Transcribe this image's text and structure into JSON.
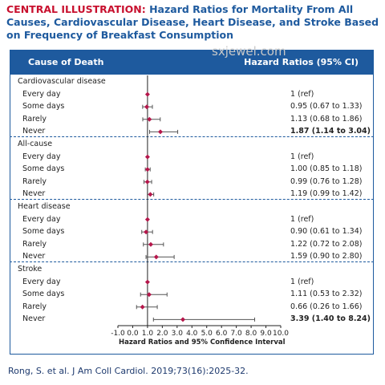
{
  "title": {
    "lead": "CENTRAL ILLUSTRATION:",
    "rest": " Hazard Ratios for Mortality From All Causes, Cardiovascular Disease, Heart Disease, and Stroke Based on Frequency of Breakfast Consumption"
  },
  "watermark": "sxjewel.com",
  "header": {
    "left": "Cause of Death",
    "right": "Hazard Ratios (95% CI)"
  },
  "citation": "Rong, S. et al. J Am Coll Cardiol. 2019;73(16):2025-32.",
  "colors": {
    "brand": "#1e5a9e",
    "accent": "#c8102e",
    "marker": "#b5174b",
    "whisker": "#555555"
  },
  "chart_data": {
    "type": "forest",
    "xlabel": "Hazard Ratios and 95% Confidence Interval",
    "xlim": [
      -1.0,
      10.0
    ],
    "xticks": [
      "-1.0",
      "0.0",
      "1.0",
      "2.0",
      "3.0",
      "4.0",
      "5.0",
      "6.0",
      "7.0",
      "8.0",
      "9.0",
      "10.0"
    ],
    "reference_line": 1.0,
    "groups": [
      {
        "name": "Cardiovascular disease",
        "rows": [
          {
            "label": "Every day",
            "hr": 1.0,
            "lo": null,
            "hi": null,
            "text": "1 (ref)",
            "bold": false
          },
          {
            "label": "Some days",
            "hr": 0.95,
            "lo": 0.67,
            "hi": 1.33,
            "text": "0.95 (0.67 to 1.33)",
            "bold": false
          },
          {
            "label": "Rarely",
            "hr": 1.13,
            "lo": 0.68,
            "hi": 1.86,
            "text": "1.13 (0.68 to 1.86)",
            "bold": false
          },
          {
            "label": "Never",
            "hr": 1.87,
            "lo": 1.14,
            "hi": 3.04,
            "text": "1.87 (1.14 to 3.04)",
            "bold": true
          }
        ]
      },
      {
        "name": "All-cause",
        "rows": [
          {
            "label": "Every day",
            "hr": 1.0,
            "lo": null,
            "hi": null,
            "text": "1 (ref)",
            "bold": false
          },
          {
            "label": "Some days",
            "hr": 1.0,
            "lo": 0.85,
            "hi": 1.18,
            "text": "1.00 (0.85 to 1.18)",
            "bold": false
          },
          {
            "label": "Rarely",
            "hr": 0.99,
            "lo": 0.76,
            "hi": 1.28,
            "text": "0.99 (0.76 to 1.28)",
            "bold": false
          },
          {
            "label": "Never",
            "hr": 1.19,
            "lo": 0.99,
            "hi": 1.42,
            "text": "1.19 (0.99 to 1.42)",
            "bold": false
          }
        ]
      },
      {
        "name": "Heart disease",
        "rows": [
          {
            "label": "Every day",
            "hr": 1.0,
            "lo": null,
            "hi": null,
            "text": "1 (ref)",
            "bold": false
          },
          {
            "label": "Some days",
            "hr": 0.9,
            "lo": 0.61,
            "hi": 1.34,
            "text": "0.90 (0.61 to 1.34)",
            "bold": false
          },
          {
            "label": "Rarely",
            "hr": 1.22,
            "lo": 0.72,
            "hi": 2.08,
            "text": "1.22 (0.72 to 2.08)",
            "bold": false
          },
          {
            "label": "Never",
            "hr": 1.59,
            "lo": 0.9,
            "hi": 2.8,
            "text": "1.59 (0.90 to 2.80)",
            "bold": false
          }
        ]
      },
      {
        "name": "Stroke",
        "rows": [
          {
            "label": "Every day",
            "hr": 1.0,
            "lo": null,
            "hi": null,
            "text": "1 (ref)",
            "bold": false
          },
          {
            "label": "Some days",
            "hr": 1.11,
            "lo": 0.53,
            "hi": 2.32,
            "text": "1.11 (0.53 to 2.32)",
            "bold": false
          },
          {
            "label": "Rarely",
            "hr": 0.66,
            "lo": 0.26,
            "hi": 1.66,
            "text": "0.66 (0.26 to 1.66)",
            "bold": false
          },
          {
            "label": "Never",
            "hr": 3.39,
            "lo": 1.4,
            "hi": 8.24,
            "text": "3.39 (1.40 to 8.24)",
            "bold": true
          }
        ]
      }
    ]
  }
}
